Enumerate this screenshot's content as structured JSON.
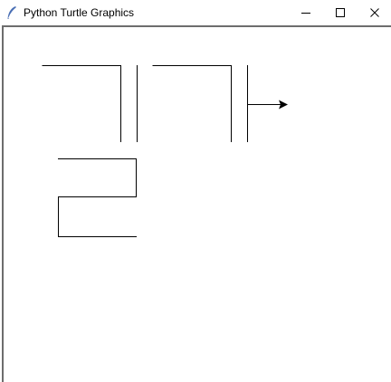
{
  "window": {
    "title": "Python Turtle Graphics"
  },
  "titlebar": {
    "app_icon": "feather-icon",
    "buttons": [
      {
        "name": "minimize",
        "icon": "minimize-icon"
      },
      {
        "name": "maximize",
        "icon": "maximize-icon"
      },
      {
        "name": "close",
        "icon": "close-icon"
      }
    ]
  },
  "canvas": {
    "background": "#ffffff",
    "pen_color": "#000000",
    "turtle_icon": "arrow-cursor-icon"
  }
}
